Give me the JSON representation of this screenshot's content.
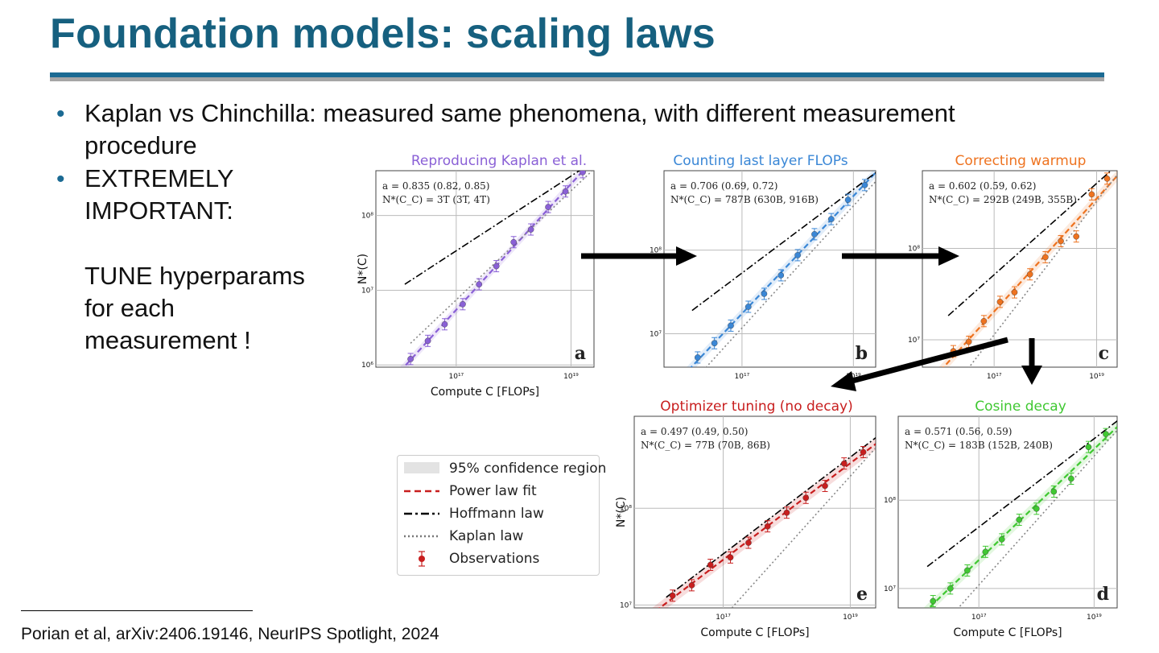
{
  "slide": {
    "title": "Foundation models: scaling laws",
    "bullets": [
      {
        "line1": "Kaplan vs Chinchilla: measured same phenomena, with different measurement",
        "line2": "procedure"
      },
      {
        "lines": [
          "EXTREMELY",
          "IMPORTANT:",
          "",
          "TUNE hyperparams",
          "for each",
          "measurement !"
        ]
      }
    ],
    "footnote": "Porian et al, arXiv:2406.19146, NeurIPS Spotlight, 2024"
  },
  "colors": {
    "title": "#16607f",
    "rule_blue": "#1b6a93",
    "rule_grey": "#a6a6a6",
    "a": "#8a60d6",
    "b": "#3a87d6",
    "c": "#ee7320",
    "d": "#40c832",
    "e": "#c81e1e"
  },
  "legend": {
    "confidence": "95% confidence region",
    "fit": "Power law fit",
    "hoffmann": "Hoffmann law",
    "kaplan": "Kaplan law",
    "obs": "Observations"
  },
  "axis_common": {
    "xlabel": "Compute C [FLOPs]",
    "ylabel": "N*(C)",
    "xticks": [
      "10¹⁷",
      "10¹⁹"
    ]
  },
  "chart_data": [
    {
      "id": "a",
      "type": "scatter",
      "title": "Reproducing Kaplan et al.",
      "letter": "a",
      "ann1": "a = 0.835 (0.82, 0.85)",
      "ann2": "N*(C_C) = 3T (3T, 4T)",
      "xlabel": "Compute C [FLOPs]",
      "ylabel": "N*(C)",
      "log_x": [
        15.6,
        19.4
      ],
      "log_y": [
        5.97,
        8.6
      ],
      "yticks": [
        "10⁶",
        "10⁷",
        "10⁸"
      ],
      "x": [
        1.6e+16,
        3.2e+16,
        6.3e+16,
        1.3e+17,
        2.5e+17,
        5e+17,
        1e+18,
        2e+18,
        4e+18,
        8e+18,
        1.6e+19
      ],
      "y": [
        1200000.0,
        2100000.0,
        3500000.0,
        6500000.0,
        12000000.0,
        21000000.0,
        44000000.0,
        65000000.0,
        130000000.0,
        210000000.0,
        380000000.0
      ]
    },
    {
      "id": "b",
      "type": "scatter",
      "title": "Counting last layer FLOPs",
      "letter": "b",
      "ann1": "a = 0.706 (0.69, 0.72)",
      "ann2": "N*(C_C) = 787B (630B, 916B)",
      "xlabel": "",
      "ylabel": "",
      "log_x": [
        15.6,
        19.4
      ],
      "log_y": [
        6.6,
        8.95
      ],
      "yticks": [
        "10⁷",
        "10⁸"
      ],
      "x": [
        1.6e+16,
        3.2e+16,
        6.3e+16,
        1.3e+17,
        2.5e+17,
        5e+17,
        1e+18,
        2e+18,
        4e+18,
        8e+18,
        1.6e+19
      ],
      "y": [
        5200000.0,
        7700000.0,
        12500000.0,
        21000000.0,
        30000000.0,
        50000000.0,
        87000000.0,
        155000000.0,
        235000000.0,
        400000000.0,
        600000000.0
      ]
    },
    {
      "id": "c",
      "type": "scatter",
      "title": "Correcting warmup",
      "letter": "c",
      "ann1": "a = 0.602 (0.59, 0.62)",
      "ann2": "N*(C_C) = 292B (249B, 355B)",
      "xlabel": "",
      "ylabel": "",
      "log_x": [
        15.6,
        19.4
      ],
      "log_y": [
        6.7,
        8.85
      ],
      "yticks": [
        "10⁷",
        "10⁸"
      ],
      "x": [
        1.6e+16,
        3.2e+16,
        6.3e+16,
        1.3e+17,
        2.5e+17,
        5e+17,
        1e+18,
        2e+18,
        4e+18,
        8e+18,
        1.6e+19
      ],
      "y": [
        7500000.0,
        9500000.0,
        16000000.0,
        26000000.0,
        33000000.0,
        52000000.0,
        80000000.0,
        120000000.0,
        135000000.0,
        390000000.0,
        580000000.0
      ]
    },
    {
      "id": "e",
      "type": "scatter",
      "title": "Optimizer tuning (no decay)",
      "letter": "e",
      "ann1": "a = 0.497 (0.49, 0.50)",
      "ann2": "N*(C_C) = 77B (70B, 86B)",
      "xlabel": "Compute C [FLOPs]",
      "ylabel": "N*(C)",
      "log_x": [
        15.6,
        19.4
      ],
      "log_y": [
        6.97,
        8.95
      ],
      "yticks": [
        "10⁷",
        "10⁸"
      ],
      "x": [
        1.6e+16,
        3.2e+16,
        6.3e+16,
        1.3e+17,
        2.5e+17,
        5e+17,
        1e+18,
        2e+18,
        4e+18,
        8e+18,
        1.6e+19
      ],
      "y": [
        12500000.0,
        16000000.0,
        26000000.0,
        31000000.0,
        44000000.0,
        65000000.0,
        90000000.0,
        128000000.0,
        170000000.0,
        290000000.0,
        380000000.0
      ]
    },
    {
      "id": "d",
      "type": "scatter",
      "title": "Cosine decay",
      "letter": "d",
      "ann1": "a = 0.571 (0.56, 0.59)",
      "ann2": "N*(C_C) = 183B (152B, 240B)",
      "xlabel": "Compute C [FLOPs]",
      "ylabel": "",
      "log_x": [
        15.6,
        19.4
      ],
      "log_y": [
        6.78,
        8.95
      ],
      "yticks": [
        "10⁷",
        "10⁸"
      ],
      "x": [
        1.6e+16,
        3.2e+16,
        6.3e+16,
        1.3e+17,
        2.5e+17,
        5e+17,
        1e+18,
        2e+18,
        4e+18,
        8e+18,
        1.6e+19
      ],
      "y": [
        7200000.0,
        10000000.0,
        16000000.0,
        26000000.0,
        36000000.0,
        60000000.0,
        80000000.0,
        125000000.0,
        175000000.0,
        400000000.0,
        560000000.0
      ]
    }
  ]
}
